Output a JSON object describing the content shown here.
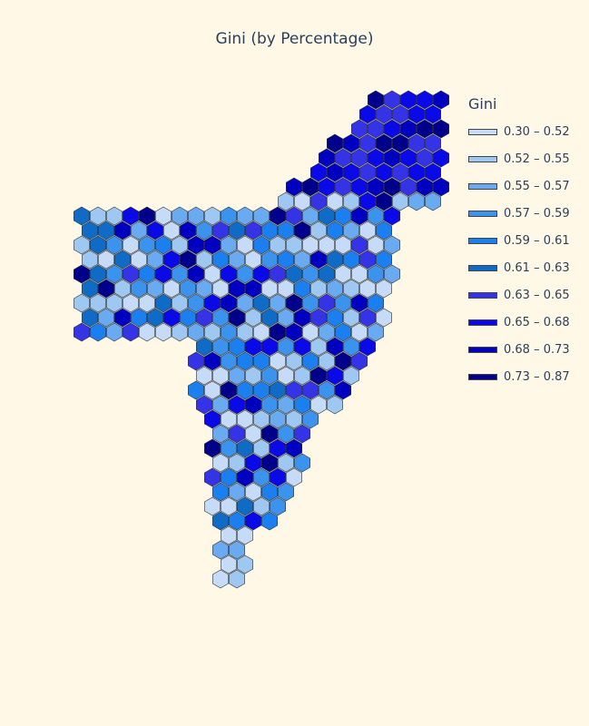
{
  "title": "Gini (by Percentage)",
  "legend": {
    "title": "Gini",
    "items": [
      {
        "label": "0.30 – 0.52",
        "color": "#c6dbf7"
      },
      {
        "label": "0.52 – 0.55",
        "color": "#9ec8f2"
      },
      {
        "label": "0.55 – 0.57",
        "color": "#6aaaf0"
      },
      {
        "label": "0.57 – 0.59",
        "color": "#3c93ee"
      },
      {
        "label": "0.59 – 0.61",
        "color": "#1b7ff0"
      },
      {
        "label": "0.61 – 0.63",
        "color": "#0f6bc6"
      },
      {
        "label": "0.63 – 0.65",
        "color": "#3434e6"
      },
      {
        "label": "0.65 – 0.68",
        "color": "#0a0ae8"
      },
      {
        "label": "0.68 – 0.73",
        "color": "#0000c0"
      },
      {
        "label": "0.73 – 0.87",
        "color": "#00008b"
      }
    ]
  }
}
